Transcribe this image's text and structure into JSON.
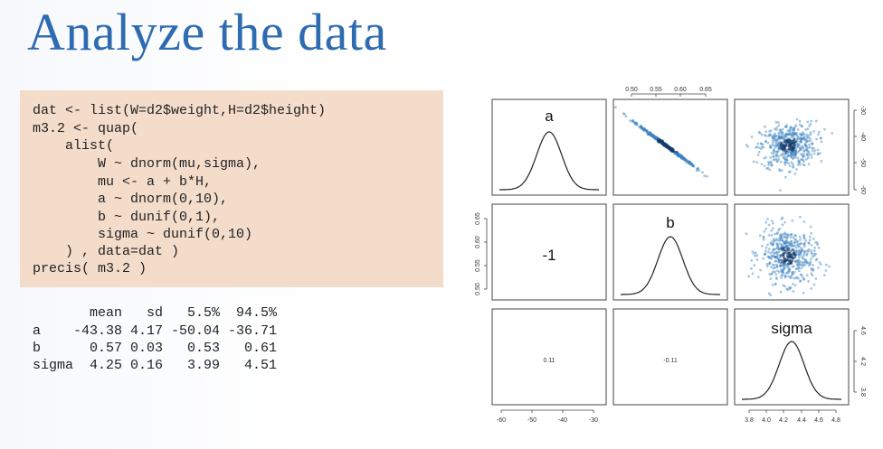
{
  "slide": {
    "title": "Analyze the data"
  },
  "code": {
    "lines": [
      "dat <- list(W=d2$weight,H=d2$height)",
      "m3.2 <- quap(",
      "    alist(",
      "        W ~ dnorm(mu,sigma),",
      "        mu <- a + b*H,",
      "        a ~ dnorm(0,10),",
      "        b ~ dunif(0,1),",
      "        sigma ~ dunif(0,10)",
      "    ) , data=dat )",
      "precis( m3.2 )"
    ]
  },
  "output": {
    "lines": [
      "       mean   sd   5.5%  94.5%",
      "a    -43.38 4.17 -50.04 -36.71",
      "b      0.57 0.03   0.53   0.61",
      "sigma  4.25 0.16   3.99   4.51"
    ]
  },
  "pairs_plot": {
    "diag_labels": {
      "a": "a",
      "b": "b",
      "sigma": "sigma"
    },
    "correlations": {
      "a_b": "-1",
      "a_sigma": "0.11",
      "b_sigma": "-0.11"
    },
    "top_axis_ticks": [
      "0.50",
      "0.55",
      "0.60",
      "0.65"
    ],
    "right_axis_ticks_row1": [
      "-30",
      "-40",
      "-50",
      "-60"
    ],
    "left_axis_ticks_row2": [
      "0.50",
      "0.55",
      "0.60",
      "0.65"
    ],
    "right_axis_ticks_row3": [
      "3.8",
      "4.2",
      "4.6"
    ],
    "bottom_axis_ticks_col1": [
      "-60",
      "-50",
      "-40",
      "-30"
    ],
    "bottom_axis_ticks_col3": [
      "3.8",
      "4.0",
      "4.2",
      "4.4",
      "4.6",
      "4.8"
    ],
    "point_color": "#3b82c0",
    "point_dark_color": "#123d6b"
  },
  "chart_data": {
    "type": "scatter",
    "title": "",
    "variables": [
      "a",
      "b",
      "sigma"
    ],
    "posterior_summary": {
      "a": {
        "mean": -43.38,
        "sd": 4.17
      },
      "b": {
        "mean": 0.57,
        "sd": 0.03
      },
      "sigma": {
        "mean": 4.25,
        "sd": 0.16
      }
    },
    "axis_ranges": {
      "a": [
        -60,
        -30
      ],
      "b": [
        0.5,
        0.65
      ],
      "sigma": [
        3.8,
        4.8
      ]
    }
  }
}
